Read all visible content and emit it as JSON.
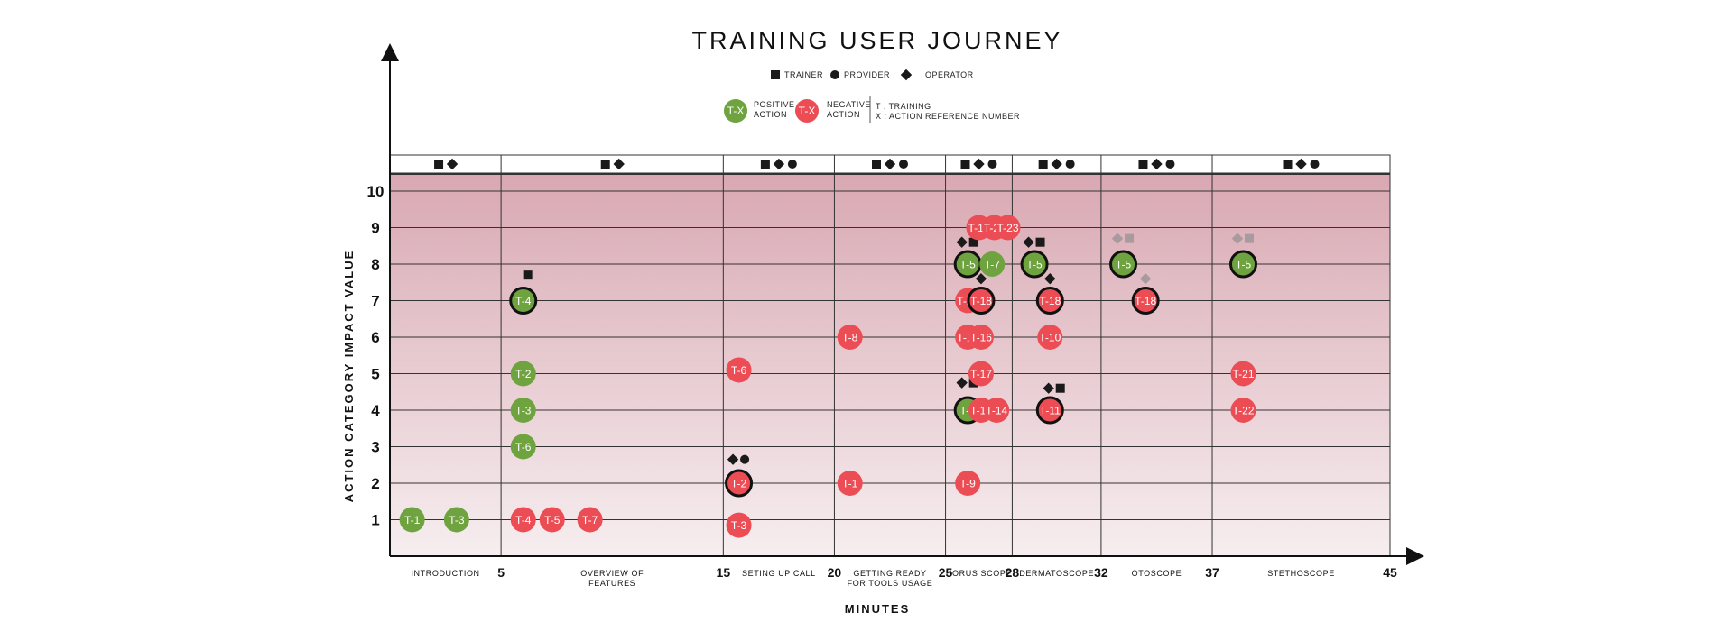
{
  "chart_data": {
    "type": "scatter",
    "title": "TRAINING USER JOURNEY",
    "xlabel": "MINUTES",
    "ylabel": "ACTION CATEGORY IMPACT VALUE",
    "xlim": [
      0,
      45
    ],
    "ylim": [
      0,
      11
    ],
    "y_ticks": [
      "1",
      "2",
      "3",
      "4",
      "5",
      "6",
      "7",
      "8",
      "9",
      "10"
    ],
    "x_ticks": [
      {
        "value": 5,
        "label": "5"
      },
      {
        "value": 15,
        "label": "15"
      },
      {
        "value": 20,
        "label": "20"
      },
      {
        "value": 25,
        "label": "25"
      },
      {
        "value": 28,
        "label": "28"
      },
      {
        "value": 32,
        "label": "32"
      },
      {
        "value": 37,
        "label": "37"
      },
      {
        "value": 45,
        "label": "45"
      }
    ],
    "colors": {
      "positive": "#6ea33f",
      "negative": "#ec4d55",
      "band_top": "#d9a8b2",
      "band_bottom": "#f6eef0",
      "stakeholder": "#1a1a1a",
      "stakeholder_faded": "#a99aa0"
    },
    "legend": {
      "stakeholders": [
        {
          "shape": "square",
          "label": "TRAINER"
        },
        {
          "shape": "circle",
          "label": "PROVIDER"
        },
        {
          "shape": "diamond",
          "label": "OPERATOR"
        }
      ],
      "positive_symbol": "T-X",
      "positive_label": [
        "POSITIVE",
        "ACTION"
      ],
      "negative_symbol": "T-X",
      "negative_label": [
        "NEGATIVE",
        "ACTION"
      ],
      "key_lines": [
        "T : TRAINING",
        "X :  ACTION REFERENCE NUMBER"
      ]
    },
    "phases": [
      {
        "name_lines": [
          "INTRODUCTION"
        ],
        "x_start": 0,
        "x_end": 5,
        "stakeholders": [
          "square",
          "diamond"
        ]
      },
      {
        "name_lines": [
          "OVERVIEW OF",
          "FEATURES"
        ],
        "x_start": 5,
        "x_end": 15,
        "stakeholders": [
          "square",
          "diamond"
        ]
      },
      {
        "name_lines": [
          "SETING UP CALL"
        ],
        "x_start": 15,
        "x_end": 20,
        "stakeholders": [
          "square",
          "diamond",
          "circle"
        ]
      },
      {
        "name_lines": [
          "GETTING READY",
          "FOR TOOLS USAGE"
        ],
        "x_start": 20,
        "x_end": 25,
        "stakeholders": [
          "square",
          "diamond",
          "circle"
        ]
      },
      {
        "name_lines": [
          "HORUS SCOPE"
        ],
        "x_start": 25,
        "x_end": 28,
        "stakeholders": [
          "square",
          "diamond",
          "circle"
        ]
      },
      {
        "name_lines": [
          "DERMATOSCOPE"
        ],
        "x_start": 28,
        "x_end": 32,
        "stakeholders": [
          "square",
          "diamond",
          "circle"
        ]
      },
      {
        "name_lines": [
          "OTOSCOPE"
        ],
        "x_start": 32,
        "x_end": 37,
        "stakeholders": [
          "square",
          "diamond",
          "circle"
        ]
      },
      {
        "name_lines": [
          "STETHOSCOPE"
        ],
        "x_start": 37,
        "x_end": 45,
        "stakeholders": [
          "square",
          "diamond",
          "circle"
        ]
      }
    ],
    "series": [
      {
        "name": "POSITIVE ACTION",
        "kind": "positive",
        "points": [
          {
            "label": "T-1",
            "x": 1.0,
            "y": 1,
            "highlight": false
          },
          {
            "label": "T-3",
            "x": 3.0,
            "y": 1,
            "highlight": false
          },
          {
            "label": "T-4",
            "x": 6.0,
            "y": 7,
            "highlight": true
          },
          {
            "label": "T-2",
            "x": 6.0,
            "y": 5,
            "highlight": false
          },
          {
            "label": "T-3",
            "x": 6.0,
            "y": 4,
            "highlight": false
          },
          {
            "label": "T-6",
            "x": 6.0,
            "y": 3,
            "highlight": false
          },
          {
            "label": "T-5",
            "x": 26.0,
            "y": 8,
            "highlight": true
          },
          {
            "label": "T-7",
            "x": 27.1,
            "y": 8,
            "highlight": false
          },
          {
            "label": "T-8",
            "x": 26.0,
            "y": 4,
            "highlight": true
          },
          {
            "label": "T-5",
            "x": 29.0,
            "y": 8,
            "highlight": true
          },
          {
            "label": "T-5",
            "x": 33.0,
            "y": 8,
            "highlight": true
          },
          {
            "label": "T-5",
            "x": 38.4,
            "y": 8,
            "highlight": true
          }
        ]
      },
      {
        "name": "NEGATIVE ACTION",
        "kind": "negative",
        "points": [
          {
            "label": "T-4",
            "x": 6.0,
            "y": 1,
            "highlight": false
          },
          {
            "label": "T-5",
            "x": 7.3,
            "y": 1,
            "highlight": false
          },
          {
            "label": "T-7",
            "x": 9.0,
            "y": 1,
            "highlight": false
          },
          {
            "label": "T-6",
            "x": 15.7,
            "y": 5.1,
            "highlight": false
          },
          {
            "label": "T-2",
            "x": 15.7,
            "y": 2,
            "highlight": true
          },
          {
            "label": "T-3",
            "x": 15.7,
            "y": 0.85,
            "highlight": false
          },
          {
            "label": "T-8",
            "x": 20.7,
            "y": 6,
            "highlight": false
          },
          {
            "label": "T-1",
            "x": 20.7,
            "y": 2,
            "highlight": false
          },
          {
            "label": "T-19",
            "x": 26.5,
            "y": 9,
            "highlight": false
          },
          {
            "label": "T-20",
            "x": 27.2,
            "y": 9,
            "highlight": false
          },
          {
            "label": "T-23",
            "x": 27.8,
            "y": 9,
            "highlight": false
          },
          {
            "label": "T-12",
            "x": 26.0,
            "y": 7,
            "highlight": false
          },
          {
            "label": "T-18",
            "x": 26.6,
            "y": 7,
            "highlight": true
          },
          {
            "label": "T-13",
            "x": 26.0,
            "y": 6,
            "highlight": false
          },
          {
            "label": "T-16",
            "x": 26.6,
            "y": 6,
            "highlight": false
          },
          {
            "label": "T-17",
            "x": 26.6,
            "y": 5,
            "highlight": false
          },
          {
            "label": "T-15",
            "x": 26.6,
            "y": 4,
            "highlight": false
          },
          {
            "label": "T-14",
            "x": 27.3,
            "y": 4,
            "highlight": false
          },
          {
            "label": "T-9",
            "x": 26.0,
            "y": 2,
            "highlight": false
          },
          {
            "label": "T-18",
            "x": 29.7,
            "y": 7,
            "highlight": true
          },
          {
            "label": "T-10",
            "x": 29.7,
            "y": 6,
            "highlight": false
          },
          {
            "label": "T-11",
            "x": 29.7,
            "y": 4,
            "highlight": true
          },
          {
            "label": "T-18",
            "x": 34.0,
            "y": 7,
            "highlight": true
          },
          {
            "label": "T-21",
            "x": 38.4,
            "y": 5,
            "highlight": false
          },
          {
            "label": "T-22",
            "x": 38.4,
            "y": 4,
            "highlight": false
          }
        ]
      }
    ],
    "stakeholder_markers": [
      {
        "x": 6.2,
        "y": 7.7,
        "shapes": [
          "square"
        ],
        "faded": false
      },
      {
        "x": 15.7,
        "y": 2.65,
        "shapes": [
          "diamond",
          "circle"
        ],
        "faded": false
      },
      {
        "x": 26.0,
        "y": 8.6,
        "shapes": [
          "diamond",
          "square"
        ],
        "faded": false
      },
      {
        "x": 26.6,
        "y": 7.6,
        "shapes": [
          "diamond"
        ],
        "faded": false
      },
      {
        "x": 26.0,
        "y": 4.75,
        "shapes": [
          "diamond",
          "square"
        ],
        "faded": false
      },
      {
        "x": 29.0,
        "y": 8.6,
        "shapes": [
          "diamond",
          "square"
        ],
        "faded": false
      },
      {
        "x": 29.7,
        "y": 7.6,
        "shapes": [
          "diamond"
        ],
        "faded": false
      },
      {
        "x": 29.9,
        "y": 4.6,
        "shapes": [
          "diamond",
          "square"
        ],
        "faded": false
      },
      {
        "x": 33.0,
        "y": 8.7,
        "shapes": [
          "diamond",
          "square"
        ],
        "faded": true
      },
      {
        "x": 34.0,
        "y": 7.6,
        "shapes": [
          "diamond"
        ],
        "faded": true
      },
      {
        "x": 38.4,
        "y": 8.7,
        "shapes": [
          "diamond",
          "square"
        ],
        "faded": true
      }
    ]
  }
}
